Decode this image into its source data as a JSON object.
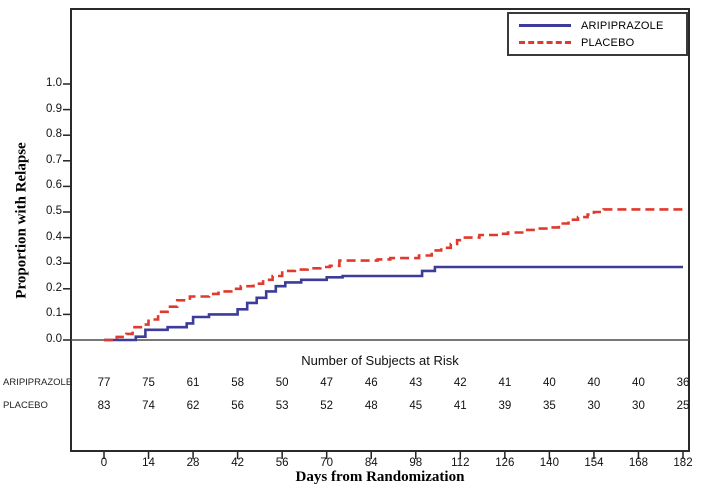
{
  "chart_data": {
    "type": "line",
    "subtype": "step-kaplan-meier",
    "title": "",
    "xlabel": "Days from Randomization",
    "ylabel": "Proportion with Relapse",
    "x_ticks": [
      0,
      14,
      28,
      42,
      56,
      70,
      84,
      98,
      112,
      126,
      140,
      154,
      168,
      182
    ],
    "y_ticks": [
      "0.0",
      "0.1",
      "0.2",
      "0.3",
      "0.4",
      "0.5",
      "0.6",
      "0.7",
      "0.8",
      "0.9",
      "1.0"
    ],
    "xlim": [
      0,
      182
    ],
    "ylim": [
      0.0,
      1.0
    ],
    "grid": false,
    "legend_position": "top-right",
    "series": [
      {
        "name": "ARIPIPRAZOLE",
        "color": "#3d3d99",
        "dash": "solid",
        "step_points": [
          [
            10,
            0.013
          ],
          [
            13,
            0.04
          ],
          [
            20,
            0.05
          ],
          [
            26,
            0.065
          ],
          [
            28,
            0.09
          ],
          [
            33,
            0.1
          ],
          [
            42,
            0.12
          ],
          [
            45,
            0.145
          ],
          [
            48,
            0.165
          ],
          [
            51,
            0.19
          ],
          [
            54,
            0.21
          ],
          [
            57,
            0.225
          ],
          [
            62,
            0.235
          ],
          [
            70,
            0.245
          ],
          [
            75,
            0.25
          ],
          [
            100,
            0.27
          ],
          [
            104,
            0.285
          ],
          [
            182,
            0.285
          ]
        ]
      },
      {
        "name": "PLACEBO",
        "color": "#e03a2e",
        "dash": "dashed",
        "step_points": [
          [
            4,
            0.012
          ],
          [
            7,
            0.024
          ],
          [
            9,
            0.05
          ],
          [
            12,
            0.06
          ],
          [
            14,
            0.08
          ],
          [
            17,
            0.11
          ],
          [
            20,
            0.13
          ],
          [
            23,
            0.155
          ],
          [
            27,
            0.17
          ],
          [
            33,
            0.18
          ],
          [
            36,
            0.19
          ],
          [
            40,
            0.2
          ],
          [
            43,
            0.21
          ],
          [
            47,
            0.22
          ],
          [
            50,
            0.235
          ],
          [
            53,
            0.25
          ],
          [
            56,
            0.27
          ],
          [
            60,
            0.275
          ],
          [
            64,
            0.28
          ],
          [
            68,
            0.285
          ],
          [
            71,
            0.29
          ],
          [
            74,
            0.31
          ],
          [
            86,
            0.315
          ],
          [
            90,
            0.32
          ],
          [
            99,
            0.33
          ],
          [
            103,
            0.35
          ],
          [
            106,
            0.36
          ],
          [
            109,
            0.375
          ],
          [
            111,
            0.39
          ],
          [
            113,
            0.4
          ],
          [
            118,
            0.41
          ],
          [
            124,
            0.415
          ],
          [
            127,
            0.42
          ],
          [
            132,
            0.43
          ],
          [
            137,
            0.435
          ],
          [
            140,
            0.44
          ],
          [
            143,
            0.455
          ],
          [
            146,
            0.47
          ],
          [
            149,
            0.48
          ],
          [
            152,
            0.49
          ],
          [
            154,
            0.5
          ],
          [
            157,
            0.51
          ],
          [
            182,
            0.51
          ]
        ]
      }
    ],
    "risk_table": {
      "title": "Number of Subjects at Risk",
      "rows": [
        {
          "label": "ARIPIPRAZOLE",
          "values": [
            77,
            75,
            61,
            58,
            50,
            47,
            46,
            43,
            42,
            41,
            40,
            40,
            40,
            36
          ]
        },
        {
          "label": "PLACEBO",
          "values": [
            83,
            74,
            62,
            56,
            53,
            52,
            48,
            45,
            41,
            39,
            35,
            30,
            30,
            25
          ]
        }
      ]
    }
  }
}
